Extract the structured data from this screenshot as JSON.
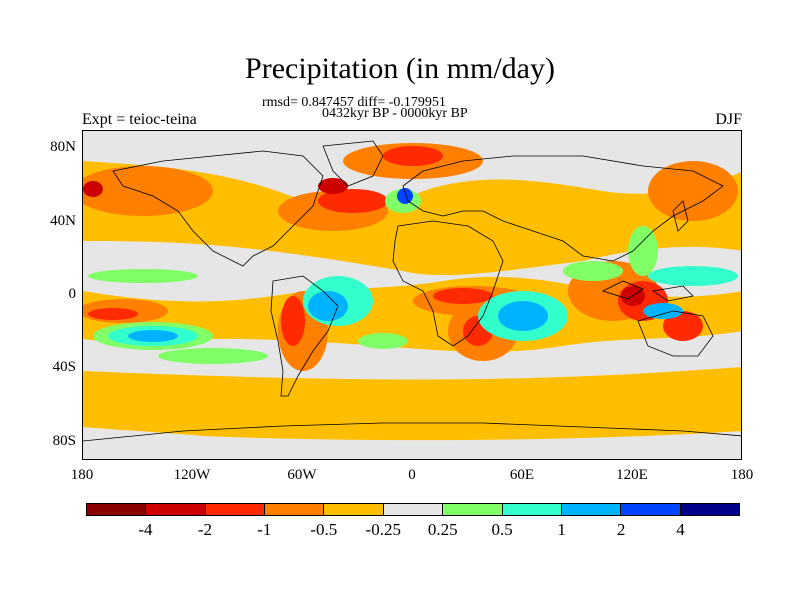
{
  "title": "Precipitation (in mm/day)",
  "stats": "rmsd= 0.847457 diff= -0.179951",
  "period": "0432kyr BP - 0000kyr BP",
  "experiment": "Expt = teioc-teina",
  "season": "DJF",
  "map": {
    "projection": "cylindrical equidistant",
    "lon_range": [
      -180,
      180
    ],
    "lat_range": [
      -90,
      90
    ],
    "y_ticks": [
      "80N",
      "40N",
      "0",
      "40S",
      "80S"
    ],
    "x_ticks": [
      "180",
      "120W",
      "60W",
      "0",
      "60E",
      "120E",
      "180"
    ],
    "background_color": "#e6e6e6",
    "coastline_color": "#000000"
  },
  "colorbar": {
    "labels": [
      "-4",
      "-2",
      "-1",
      "-0.5",
      "-0.25",
      "0.25",
      "0.5",
      "1",
      "2",
      "4"
    ],
    "colors": [
      "#8b0000",
      "#cc0000",
      "#ff2a00",
      "#ff7f00",
      "#ffbf00",
      "#e6e6e6",
      "#80ff66",
      "#33ffcc",
      "#00b3ff",
      "#0044ff",
      "#00008b"
    ]
  }
}
